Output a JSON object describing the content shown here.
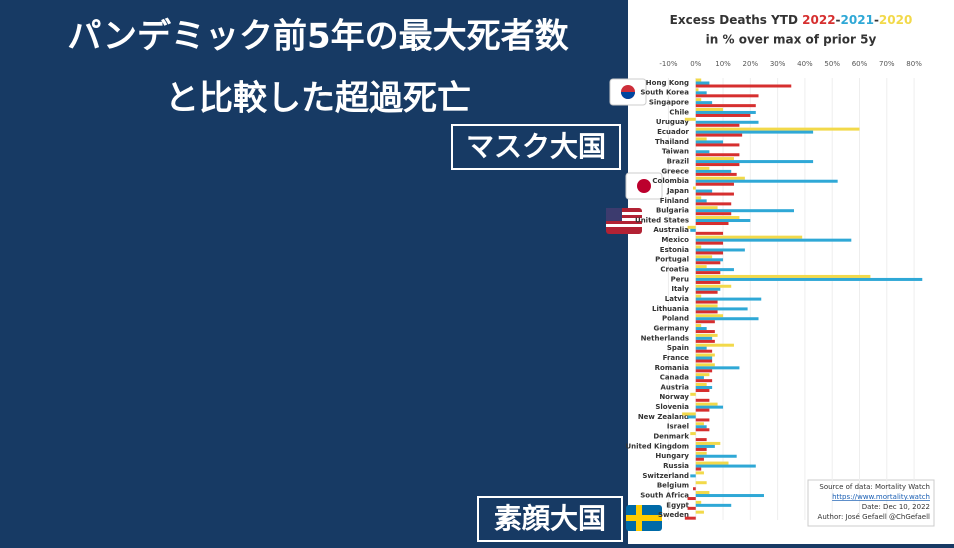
{
  "header": {
    "lines": [
      "パンデミック前5年の最大死者数",
      "と比較した超過死亡"
    ]
  },
  "callouts": [
    "マスク大国",
    "素顔大国"
  ],
  "chart_data": {
    "type": "bar",
    "orientation": "horizontal",
    "title": "Excess Deaths YTD",
    "series_separator": "-",
    "subtitle": "in % over max of prior 5y",
    "categories": [
      "Hong Kong",
      "South Korea",
      "Singapore",
      "Chile",
      "Uruguay",
      "Ecuador",
      "Thailand",
      "Taiwan",
      "Brazil",
      "Greece",
      "Colombia",
      "Japan",
      "Finland",
      "Bulgaria",
      "United States",
      "Australia",
      "Mexico",
      "Estonia",
      "Portugal",
      "Croatia",
      "Peru",
      "Italy",
      "Latvia",
      "Lithuania",
      "Poland",
      "Germany",
      "Netherlands",
      "Spain",
      "France",
      "Romania",
      "Canada",
      "Austria",
      "Norway",
      "Slovenia",
      "New Zealand",
      "Israel",
      "Denmark",
      "United Kingdom",
      "Hungary",
      "Russia",
      "Switzerland",
      "Belgium",
      "South Africa",
      "Egypt",
      "Sweden"
    ],
    "series": [
      {
        "name": "2022",
        "color": "#d62f2f",
        "values": [
          35,
          23,
          22,
          20,
          16,
          17,
          16,
          16,
          16,
          15,
          14,
          14,
          13,
          13,
          12,
          10,
          10,
          10,
          9,
          9,
          9,
          8,
          8,
          8,
          7,
          7,
          7,
          6,
          6,
          6,
          6,
          5,
          5,
          5,
          5,
          5,
          4,
          4,
          3,
          2,
          0,
          -1,
          -3,
          -3,
          -4
        ]
      },
      {
        "name": "2021",
        "color": "#2fa8d6",
        "values": [
          5,
          4,
          6,
          22,
          23,
          43,
          10,
          5,
          43,
          13,
          52,
          6,
          4,
          36,
          20,
          -2,
          57,
          18,
          10,
          14,
          83,
          9,
          24,
          19,
          23,
          4,
          6,
          4,
          6,
          16,
          3,
          6,
          0,
          10,
          -3,
          4,
          0,
          7,
          15,
          22,
          -2,
          0,
          25,
          13,
          0
        ]
      },
      {
        "name": "2020",
        "color": "#f2d94a",
        "values": [
          2,
          1,
          2,
          10,
          -4,
          60,
          4,
          0,
          14,
          5,
          18,
          -1,
          2,
          8,
          16,
          -3,
          39,
          2,
          6,
          4,
          64,
          13,
          2,
          8,
          10,
          2,
          8,
          14,
          7,
          7,
          5,
          4,
          -2,
          8,
          -5,
          3,
          -2,
          9,
          4,
          12,
          3,
          4,
          5,
          2,
          3
        ]
      }
    ],
    "xlim": [
      -12,
      84
    ],
    "xticks": [
      {
        "value": -10,
        "label": "-10%"
      },
      {
        "value": 0,
        "label": "0%"
      },
      {
        "value": 10,
        "label": "10%"
      },
      {
        "value": 20,
        "label": "20%"
      },
      {
        "value": 30,
        "label": "30%"
      },
      {
        "value": 40,
        "label": "40%"
      },
      {
        "value": 50,
        "label": "50%"
      },
      {
        "value": 60,
        "label": "60%"
      },
      {
        "value": 70,
        "label": "70%"
      },
      {
        "value": 80,
        "label": "80%"
      }
    ],
    "grid": true,
    "source": [
      "Source of data: Mortality Watch",
      "https://www.mortality.watch",
      "Date: Dec 10, 2022",
      "Author: José Gefaell @ChGefaell"
    ]
  }
}
